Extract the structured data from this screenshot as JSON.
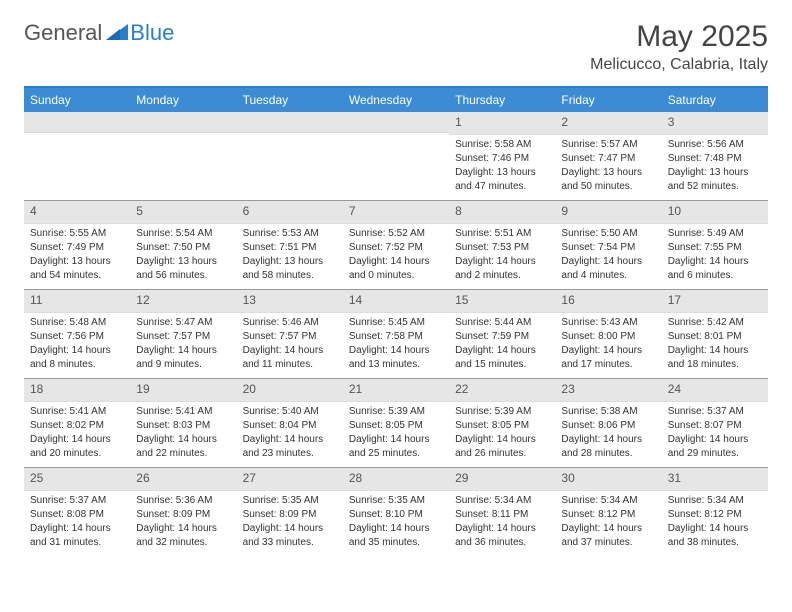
{
  "logo": {
    "general": "General",
    "blue": "Blue"
  },
  "header": {
    "month_title": "May 2025",
    "location": "Melicucco, Calabria, Italy"
  },
  "colors": {
    "header_bg": "#3b8cd4",
    "border_top": "#2a7fc9",
    "daynum_bg": "#e6e6e6",
    "text": "#333333"
  },
  "day_names": [
    "Sunday",
    "Monday",
    "Tuesday",
    "Wednesday",
    "Thursday",
    "Friday",
    "Saturday"
  ],
  "weeks": [
    [
      {
        "empty": true
      },
      {
        "empty": true
      },
      {
        "empty": true
      },
      {
        "empty": true
      },
      {
        "day": "1",
        "sunrise": "Sunrise: 5:58 AM",
        "sunset": "Sunset: 7:46 PM",
        "daylight1": "Daylight: 13 hours",
        "daylight2": "and 47 minutes."
      },
      {
        "day": "2",
        "sunrise": "Sunrise: 5:57 AM",
        "sunset": "Sunset: 7:47 PM",
        "daylight1": "Daylight: 13 hours",
        "daylight2": "and 50 minutes."
      },
      {
        "day": "3",
        "sunrise": "Sunrise: 5:56 AM",
        "sunset": "Sunset: 7:48 PM",
        "daylight1": "Daylight: 13 hours",
        "daylight2": "and 52 minutes."
      }
    ],
    [
      {
        "day": "4",
        "sunrise": "Sunrise: 5:55 AM",
        "sunset": "Sunset: 7:49 PM",
        "daylight1": "Daylight: 13 hours",
        "daylight2": "and 54 minutes."
      },
      {
        "day": "5",
        "sunrise": "Sunrise: 5:54 AM",
        "sunset": "Sunset: 7:50 PM",
        "daylight1": "Daylight: 13 hours",
        "daylight2": "and 56 minutes."
      },
      {
        "day": "6",
        "sunrise": "Sunrise: 5:53 AM",
        "sunset": "Sunset: 7:51 PM",
        "daylight1": "Daylight: 13 hours",
        "daylight2": "and 58 minutes."
      },
      {
        "day": "7",
        "sunrise": "Sunrise: 5:52 AM",
        "sunset": "Sunset: 7:52 PM",
        "daylight1": "Daylight: 14 hours",
        "daylight2": "and 0 minutes."
      },
      {
        "day": "8",
        "sunrise": "Sunrise: 5:51 AM",
        "sunset": "Sunset: 7:53 PM",
        "daylight1": "Daylight: 14 hours",
        "daylight2": "and 2 minutes."
      },
      {
        "day": "9",
        "sunrise": "Sunrise: 5:50 AM",
        "sunset": "Sunset: 7:54 PM",
        "daylight1": "Daylight: 14 hours",
        "daylight2": "and 4 minutes."
      },
      {
        "day": "10",
        "sunrise": "Sunrise: 5:49 AM",
        "sunset": "Sunset: 7:55 PM",
        "daylight1": "Daylight: 14 hours",
        "daylight2": "and 6 minutes."
      }
    ],
    [
      {
        "day": "11",
        "sunrise": "Sunrise: 5:48 AM",
        "sunset": "Sunset: 7:56 PM",
        "daylight1": "Daylight: 14 hours",
        "daylight2": "and 8 minutes."
      },
      {
        "day": "12",
        "sunrise": "Sunrise: 5:47 AM",
        "sunset": "Sunset: 7:57 PM",
        "daylight1": "Daylight: 14 hours",
        "daylight2": "and 9 minutes."
      },
      {
        "day": "13",
        "sunrise": "Sunrise: 5:46 AM",
        "sunset": "Sunset: 7:57 PM",
        "daylight1": "Daylight: 14 hours",
        "daylight2": "and 11 minutes."
      },
      {
        "day": "14",
        "sunrise": "Sunrise: 5:45 AM",
        "sunset": "Sunset: 7:58 PM",
        "daylight1": "Daylight: 14 hours",
        "daylight2": "and 13 minutes."
      },
      {
        "day": "15",
        "sunrise": "Sunrise: 5:44 AM",
        "sunset": "Sunset: 7:59 PM",
        "daylight1": "Daylight: 14 hours",
        "daylight2": "and 15 minutes."
      },
      {
        "day": "16",
        "sunrise": "Sunrise: 5:43 AM",
        "sunset": "Sunset: 8:00 PM",
        "daylight1": "Daylight: 14 hours",
        "daylight2": "and 17 minutes."
      },
      {
        "day": "17",
        "sunrise": "Sunrise: 5:42 AM",
        "sunset": "Sunset: 8:01 PM",
        "daylight1": "Daylight: 14 hours",
        "daylight2": "and 18 minutes."
      }
    ],
    [
      {
        "day": "18",
        "sunrise": "Sunrise: 5:41 AM",
        "sunset": "Sunset: 8:02 PM",
        "daylight1": "Daylight: 14 hours",
        "daylight2": "and 20 minutes."
      },
      {
        "day": "19",
        "sunrise": "Sunrise: 5:41 AM",
        "sunset": "Sunset: 8:03 PM",
        "daylight1": "Daylight: 14 hours",
        "daylight2": "and 22 minutes."
      },
      {
        "day": "20",
        "sunrise": "Sunrise: 5:40 AM",
        "sunset": "Sunset: 8:04 PM",
        "daylight1": "Daylight: 14 hours",
        "daylight2": "and 23 minutes."
      },
      {
        "day": "21",
        "sunrise": "Sunrise: 5:39 AM",
        "sunset": "Sunset: 8:05 PM",
        "daylight1": "Daylight: 14 hours",
        "daylight2": "and 25 minutes."
      },
      {
        "day": "22",
        "sunrise": "Sunrise: 5:39 AM",
        "sunset": "Sunset: 8:05 PM",
        "daylight1": "Daylight: 14 hours",
        "daylight2": "and 26 minutes."
      },
      {
        "day": "23",
        "sunrise": "Sunrise: 5:38 AM",
        "sunset": "Sunset: 8:06 PM",
        "daylight1": "Daylight: 14 hours",
        "daylight2": "and 28 minutes."
      },
      {
        "day": "24",
        "sunrise": "Sunrise: 5:37 AM",
        "sunset": "Sunset: 8:07 PM",
        "daylight1": "Daylight: 14 hours",
        "daylight2": "and 29 minutes."
      }
    ],
    [
      {
        "day": "25",
        "sunrise": "Sunrise: 5:37 AM",
        "sunset": "Sunset: 8:08 PM",
        "daylight1": "Daylight: 14 hours",
        "daylight2": "and 31 minutes."
      },
      {
        "day": "26",
        "sunrise": "Sunrise: 5:36 AM",
        "sunset": "Sunset: 8:09 PM",
        "daylight1": "Daylight: 14 hours",
        "daylight2": "and 32 minutes."
      },
      {
        "day": "27",
        "sunrise": "Sunrise: 5:35 AM",
        "sunset": "Sunset: 8:09 PM",
        "daylight1": "Daylight: 14 hours",
        "daylight2": "and 33 minutes."
      },
      {
        "day": "28",
        "sunrise": "Sunrise: 5:35 AM",
        "sunset": "Sunset: 8:10 PM",
        "daylight1": "Daylight: 14 hours",
        "daylight2": "and 35 minutes."
      },
      {
        "day": "29",
        "sunrise": "Sunrise: 5:34 AM",
        "sunset": "Sunset: 8:11 PM",
        "daylight1": "Daylight: 14 hours",
        "daylight2": "and 36 minutes."
      },
      {
        "day": "30",
        "sunrise": "Sunrise: 5:34 AM",
        "sunset": "Sunset: 8:12 PM",
        "daylight1": "Daylight: 14 hours",
        "daylight2": "and 37 minutes."
      },
      {
        "day": "31",
        "sunrise": "Sunrise: 5:34 AM",
        "sunset": "Sunset: 8:12 PM",
        "daylight1": "Daylight: 14 hours",
        "daylight2": "and 38 minutes."
      }
    ]
  ]
}
